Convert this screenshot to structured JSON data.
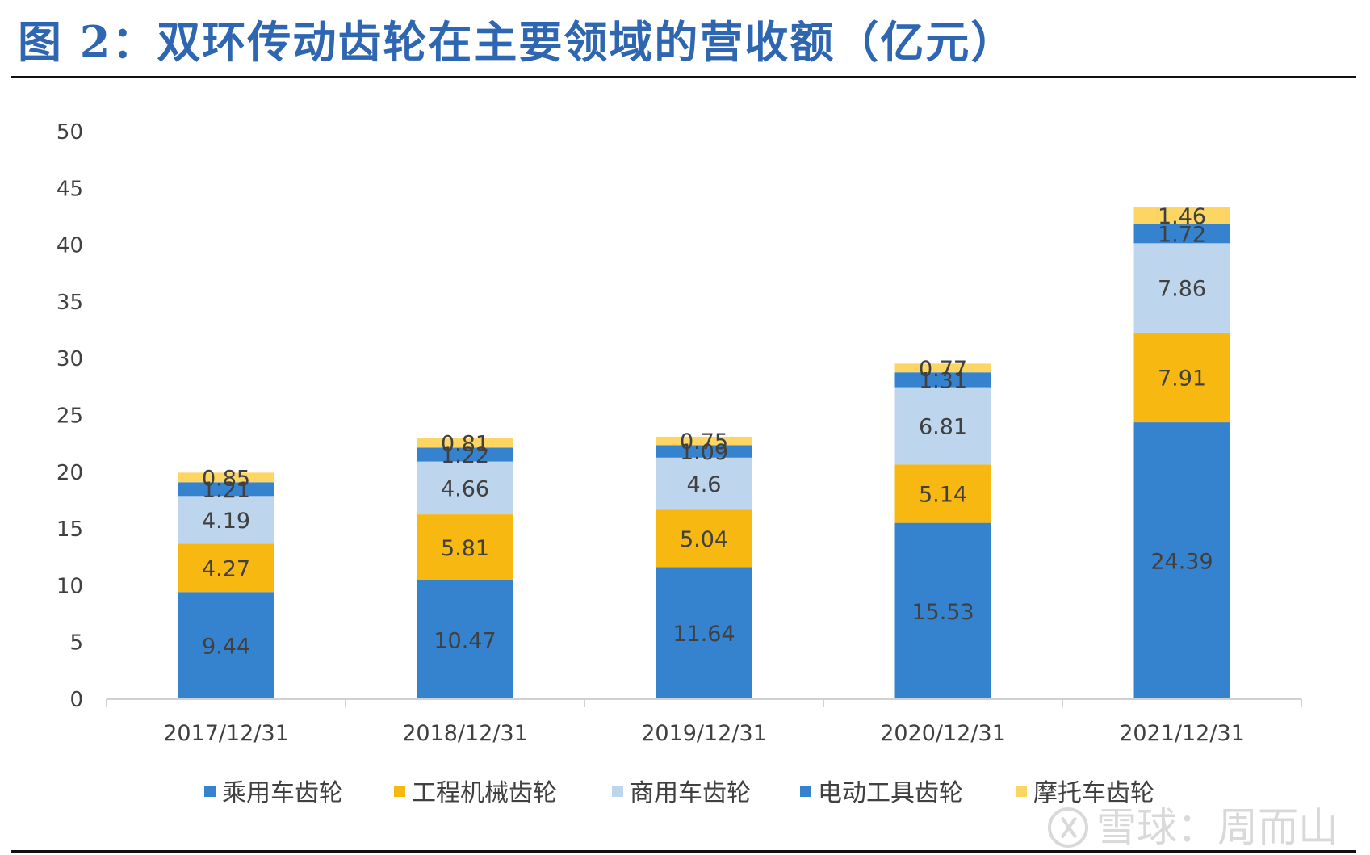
{
  "figure": {
    "title": "图 2：双环传动齿轮在主要领域的营收额（亿元）",
    "watermark": "雪球：周而山"
  },
  "colors": {
    "title": "#2f66b1",
    "乘用车齿轮": "#3583cf",
    "工程机械齿轮": "#f7b812",
    "商用车齿轮": "#bed6ed",
    "电动工具齿轮": "#3583cf",
    "摩托车齿轮": "#fcd562"
  },
  "chart_data": {
    "type": "bar",
    "stacked": true,
    "title": "",
    "xlabel": "",
    "ylabel": "",
    "categories": [
      "2017/12/31",
      "2018/12/31",
      "2019/12/31",
      "2020/12/31",
      "2021/12/31"
    ],
    "ylim": [
      0,
      50
    ],
    "yticks": [
      0,
      5,
      10,
      15,
      20,
      25,
      30,
      35,
      40,
      45,
      50
    ],
    "grid": false,
    "legend_position": "bottom",
    "series": [
      {
        "name": "乘用车齿轮",
        "values": [
          9.44,
          10.47,
          11.64,
          15.53,
          24.39
        ],
        "labels": [
          "9.44",
          "10.47",
          "11.64",
          "15.53",
          "24.39"
        ]
      },
      {
        "name": "工程机械齿轮",
        "values": [
          4.27,
          5.81,
          5.04,
          5.14,
          7.91
        ],
        "labels": [
          "4.27",
          "5.81",
          "5.04",
          "5.14",
          "7.91"
        ]
      },
      {
        "name": "商用车齿轮",
        "values": [
          4.19,
          4.66,
          4.6,
          6.81,
          7.86
        ],
        "labels": [
          "4.19",
          "4.66",
          "4.6",
          "6.81",
          "7.86"
        ]
      },
      {
        "name": "电动工具齿轮",
        "values": [
          1.21,
          1.22,
          1.09,
          1.31,
          1.72
        ],
        "labels": [
          "1.21",
          "1.22",
          "1.09",
          "1.31",
          "1.72"
        ]
      },
      {
        "name": "摩托车齿轮",
        "values": [
          0.85,
          0.81,
          0.75,
          0.77,
          1.46
        ],
        "labels": [
          "0.85",
          "0.81",
          "0.75",
          "0.77",
          "1.46"
        ]
      }
    ]
  }
}
